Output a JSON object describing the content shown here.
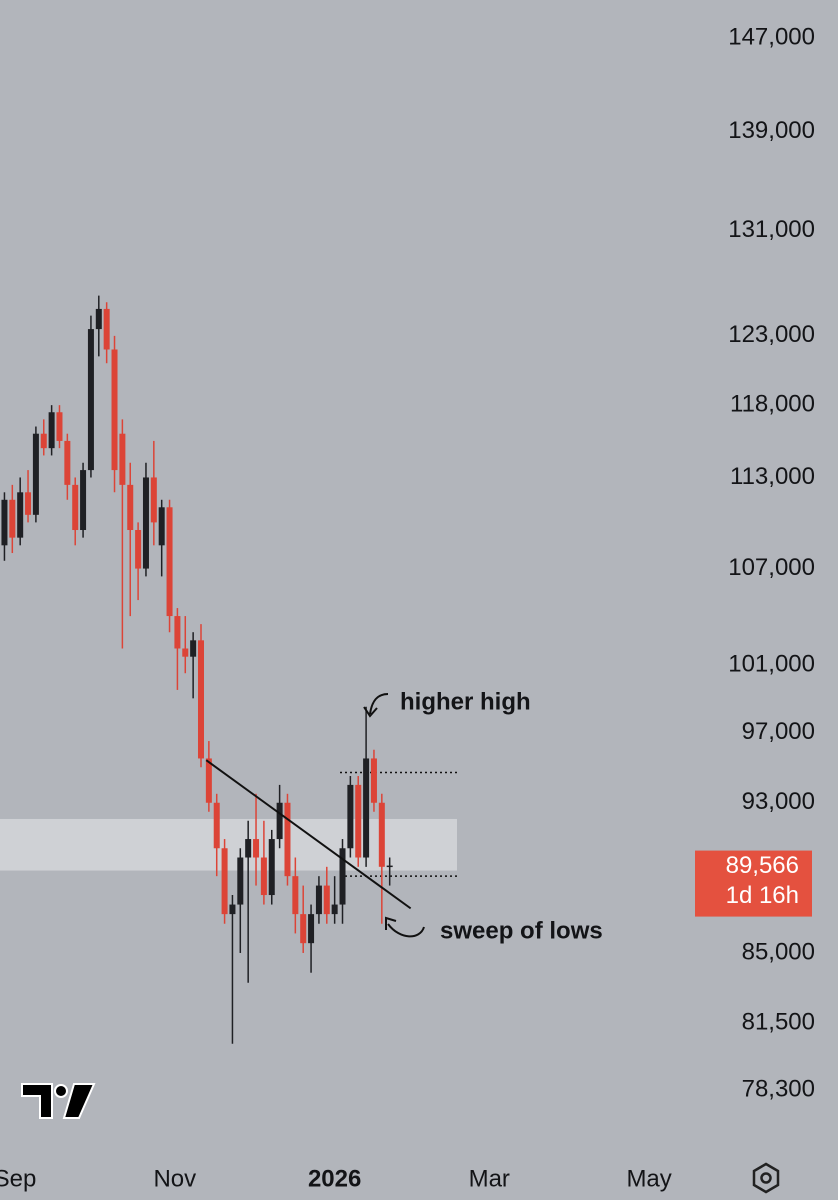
{
  "chart_data": {
    "type": "candlestick",
    "log_scale": true,
    "up_color": "#1f2024",
    "down_color": "#dc4437",
    "x": [
      -4,
      -1,
      2,
      5,
      8,
      11,
      14,
      17,
      20,
      23,
      26,
      29,
      32,
      35,
      38,
      41,
      44,
      47,
      50,
      53,
      56,
      59,
      62,
      65,
      68,
      71,
      74,
      77,
      80,
      83,
      86,
      89,
      92,
      95,
      98,
      101,
      104,
      107,
      110,
      113,
      116,
      119,
      122,
      125,
      128,
      131,
      134,
      137,
      140,
      143
    ],
    "open": [
      108500,
      111500,
      109000,
      112000,
      110500,
      116000,
      115000,
      117500,
      115500,
      112500,
      109500,
      113500,
      123500,
      125000,
      122000,
      116000,
      112500,
      109500,
      107000,
      113000,
      108500,
      111000,
      104000,
      102000,
      101500,
      102500,
      95500,
      93000,
      90500,
      87000,
      87500,
      90000,
      91000,
      90000,
      88000,
      91000,
      93000,
      89000,
      87000,
      85500,
      87000,
      88500,
      87000,
      87500,
      90500,
      94000,
      90000,
      95500,
      93000,
      89500
    ],
    "high": [
      112000,
      112500,
      113000,
      113500,
      116500,
      117000,
      118000,
      118000,
      116000,
      113000,
      114000,
      124500,
      126000,
      125500,
      123000,
      117000,
      114000,
      110000,
      114000,
      115500,
      111500,
      111500,
      104500,
      104000,
      103000,
      103500,
      96500,
      93500,
      91000,
      88000,
      90500,
      92000,
      93500,
      92000,
      91500,
      94000,
      93500,
      90000,
      88500,
      87500,
      89000,
      89500,
      89000,
      91000,
      94500,
      94500,
      98500,
      96000,
      93500,
      90000
    ],
    "low": [
      107500,
      108000,
      108500,
      110000,
      110000,
      114500,
      114500,
      115000,
      111500,
      108500,
      109000,
      113000,
      121500,
      121000,
      112000,
      102000,
      104000,
      105000,
      106500,
      108500,
      106500,
      103000,
      99500,
      100500,
      99000,
      95000,
      92500,
      89000,
      86500,
      80500,
      85000,
      83500,
      88500,
      87500,
      87500,
      90500,
      88500,
      86000,
      85000,
      84000,
      86500,
      86500,
      86500,
      86500,
      90000,
      89500,
      89500,
      92500,
      86500,
      88500
    ],
    "close": [
      111500,
      109000,
      112000,
      110500,
      116000,
      115000,
      117500,
      115500,
      112500,
      109500,
      113500,
      123500,
      125000,
      122000,
      113500,
      112500,
      109500,
      107000,
      113000,
      110000,
      111000,
      104000,
      102000,
      101500,
      102500,
      95500,
      93000,
      90500,
      87000,
      87500,
      90000,
      91000,
      90000,
      88000,
      91000,
      93000,
      89000,
      87000,
      85500,
      87000,
      88500,
      87000,
      87500,
      90500,
      94000,
      90000,
      95500,
      93000,
      89500,
      89566
    ],
    "xlim": [
      -5.7,
      257.6
    ],
    "xticks": [
      {
        "value": 0,
        "label": "Sep"
      },
      {
        "value": 61,
        "label": "Nov"
      },
      {
        "value": 122,
        "label": "2026"
      },
      {
        "value": 181,
        "label": "Mar"
      },
      {
        "value": 242,
        "label": "May"
      }
    ],
    "ylim": [
      75540,
      150400
    ],
    "yticks": [
      {
        "value": 147000,
        "label": "147,000"
      },
      {
        "value": 139000,
        "label": "139,000"
      },
      {
        "value": 131000,
        "label": "131,000"
      },
      {
        "value": 123000,
        "label": "123,000"
      },
      {
        "value": 118000,
        "label": "118,000"
      },
      {
        "value": 113000,
        "label": "113,000"
      },
      {
        "value": 107000,
        "label": "107,000"
      },
      {
        "value": 101000,
        "label": "101,000"
      },
      {
        "value": 97000,
        "label": "97,000"
      },
      {
        "value": 93000,
        "label": "93,000"
      },
      {
        "value": 85000,
        "label": "85,000"
      },
      {
        "value": 81500,
        "label": "81,500"
      },
      {
        "value": 78300,
        "label": "78,300"
      }
    ],
    "last_price": {
      "value": 89566,
      "label": "89,566"
    },
    "countdown": "1d 16h",
    "zone": [
      89300,
      92100
    ],
    "levels": [
      94700,
      89000
    ],
    "trendline": {
      "x": [
        73,
        151
      ],
      "y": [
        95400,
        87300
      ]
    },
    "annotations": [
      "higher high",
      "sweep of lows"
    ]
  }
}
